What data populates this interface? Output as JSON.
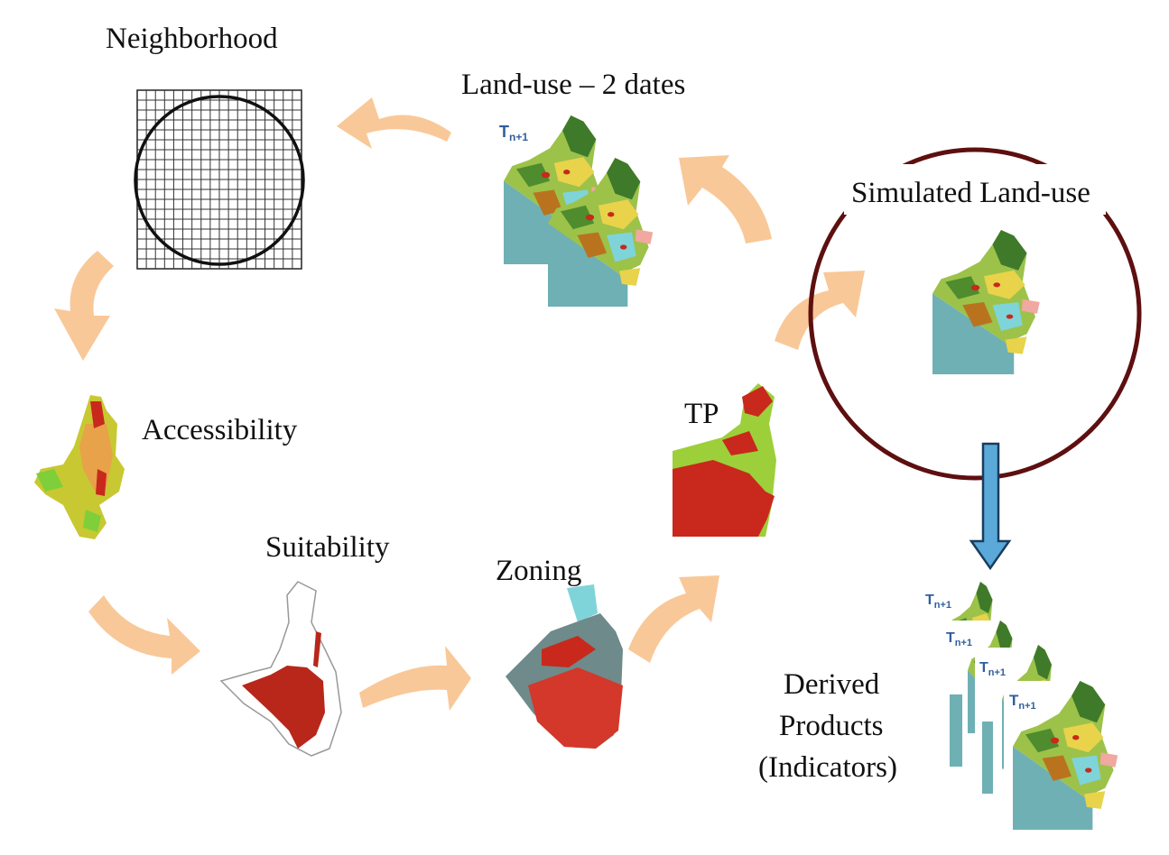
{
  "labels": {
    "neighborhood": "Neighborhood",
    "landuse_two_dates": "Land-use – 2 dates",
    "simulated_landuse": "Simulated Land-use",
    "accessibility": "Accessibility",
    "tp": "TP",
    "suitability": "Suitability",
    "zoning": "Zoning",
    "derived_line1": "Derived",
    "derived_line2": "Products",
    "derived_line3": "(Indicators)"
  },
  "time_label": {
    "base": "T",
    "sub": "n+1"
  },
  "colors": {
    "arrow": "#f9c898",
    "circle": "#5e0f0f",
    "down_arrow_fill": "#5aa9d8",
    "down_arrow_stroke": "#1a3c5e",
    "water": "#6fb0b5",
    "forest": "#3f7a2a",
    "yellow": "#e8d34a",
    "red": "#c8291c",
    "cyan": "#7fd4da",
    "pink": "#f0a8a0",
    "lime": "#9dcf3a",
    "orange": "#e7a24a"
  }
}
